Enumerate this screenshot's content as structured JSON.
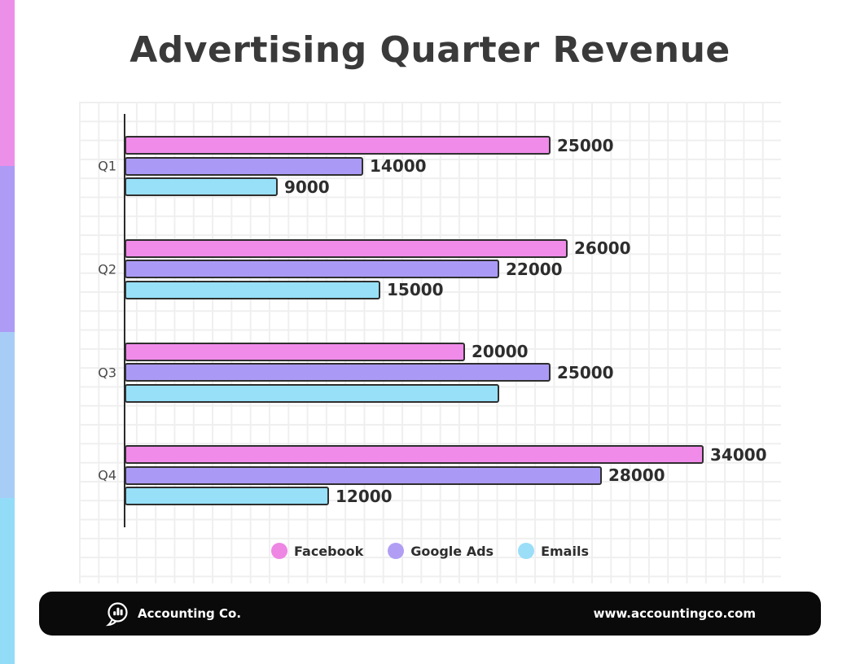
{
  "title": "Advertising Quarter Revenue",
  "side_strip": {
    "colors": [
      "#ec8fe8",
      "#ad9bf6",
      "#a7cdf6",
      "#93dcf8"
    ]
  },
  "chart_data": {
    "type": "bar",
    "orientation": "horizontal",
    "title": "Advertising Quarter Revenue",
    "categories": [
      "Q1",
      "Q2",
      "Q3",
      "Q4"
    ],
    "series": [
      {
        "name": "Facebook",
        "color": "#f08be9",
        "values": [
          25000,
          26000,
          20000,
          34000
        ],
        "label_visible": [
          true,
          true,
          true,
          true
        ]
      },
      {
        "name": "Google Ads",
        "color": "#ab9af5",
        "values": [
          14000,
          22000,
          25000,
          28000
        ],
        "label_visible": [
          true,
          true,
          true,
          true
        ]
      },
      {
        "name": "Emails",
        "color": "#97e0f8",
        "values": [
          9000,
          15000,
          22000,
          12000
        ],
        "label_visible": [
          true,
          true,
          false,
          true
        ]
      }
    ],
    "axis_max": 38600,
    "grid": true,
    "legend_position": "bottom",
    "value_labels": "end-of-bar"
  },
  "legend": {
    "items": [
      {
        "label": "Facebook",
        "color": "#ee86e3"
      },
      {
        "label": "Google Ads",
        "color": "#b19ef4"
      },
      {
        "label": "Emails",
        "color": "#9bdef8"
      }
    ]
  },
  "footer": {
    "brand": "Accounting Co.",
    "website": "www.accountingco.com",
    "background": "#0a0a0a",
    "icon": "speech-bubble-chart-icon"
  },
  "colors": {
    "bar_border": "#2f2f2f",
    "axis": "#2b2b2b",
    "grid_line": "#efefef",
    "value_label": "#2d2d2d",
    "category_label": "#4a4a4a",
    "title": "#3a3a3a"
  }
}
